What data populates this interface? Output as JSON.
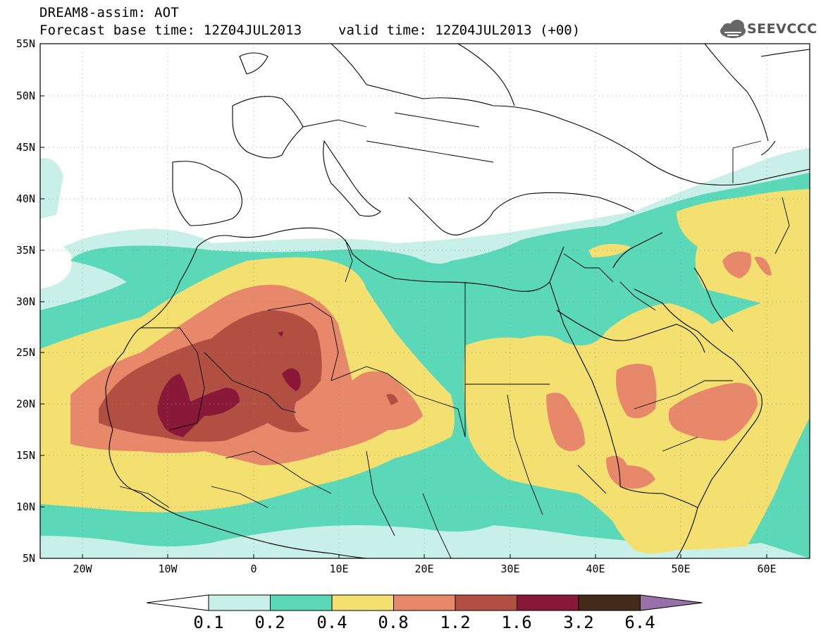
{
  "header": {
    "title": "DREAM8-assim: AOT",
    "base_time": "Forecast base time: 12Z04JUL2013",
    "valid_time": "valid time: 12Z04JUL2013 (+00)",
    "logo": "SEEVCCC",
    "logo_icon": "cloud-icon"
  },
  "map": {
    "lon_range": [
      -25,
      65
    ],
    "lat_range": [
      5,
      55
    ],
    "lat_ticks": [
      "55N",
      "50N",
      "45N",
      "40N",
      "35N",
      "30N",
      "25N",
      "20N",
      "15N",
      "10N",
      "5N"
    ],
    "lon_ticks": [
      "20W",
      "10W",
      "0",
      "10E",
      "20E",
      "30E",
      "40E",
      "50E",
      "60E"
    ],
    "variable": "AOT"
  },
  "colorbar": {
    "levels": [
      "0.1",
      "0.2",
      "0.4",
      "0.8",
      "1.2",
      "1.6",
      "3.2",
      "6.4"
    ],
    "colors": [
      "#ffffff",
      "#c8f0e8",
      "#5ad8b8",
      "#f4e070",
      "#e8886a",
      "#b24f43",
      "#8a1838",
      "#442a18",
      "#9a70a8"
    ]
  }
}
